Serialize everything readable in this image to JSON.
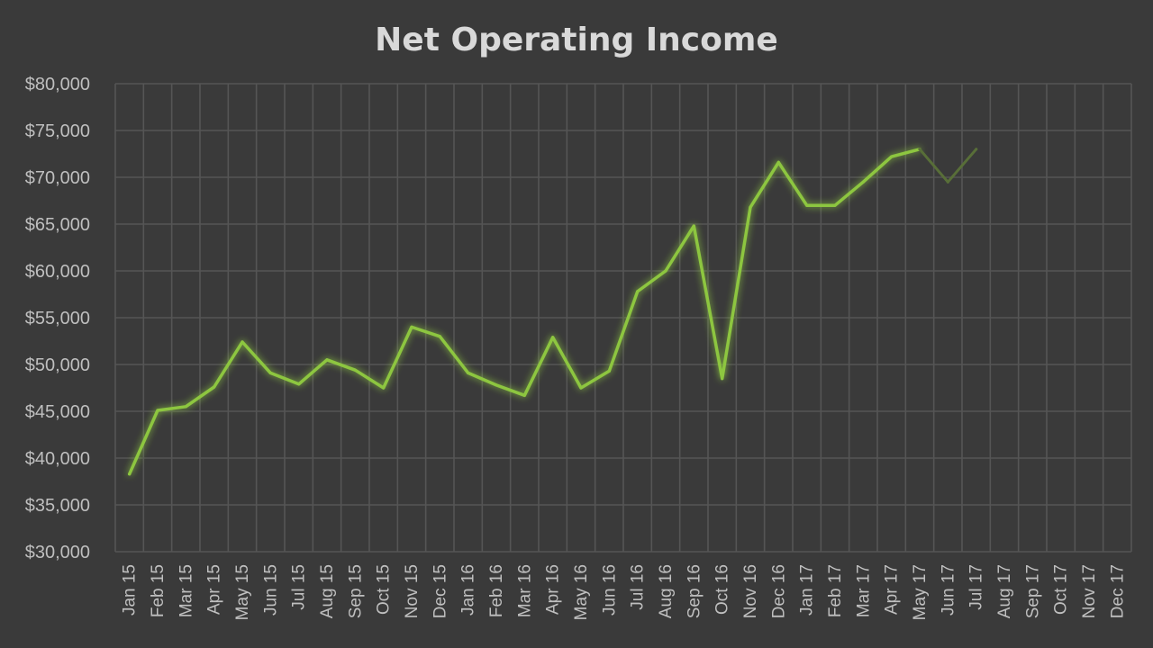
{
  "colors": {
    "background": "#3a3a3a",
    "grid": "#555555",
    "line": "#8dc63f",
    "line_faded": "#586e38",
    "text": "#bfbfbf",
    "title": "#d9d9d9"
  },
  "chart_data": {
    "type": "line",
    "title": "Net Operating Income",
    "xlabel": "",
    "ylabel": "",
    "ylim": [
      30000,
      80000
    ],
    "ytick_values": [
      30000,
      35000,
      40000,
      45000,
      50000,
      55000,
      60000,
      65000,
      70000,
      75000,
      80000
    ],
    "ytick_labels": [
      "$30,000",
      "$35,000",
      "$40,000",
      "$45,000",
      "$50,000",
      "$55,000",
      "$60,000",
      "$65,000",
      "$70,000",
      "$75,000",
      "$80,000"
    ],
    "grid": true,
    "legend": "none",
    "categories": [
      "Jan 15",
      "Feb 15",
      "Mar 15",
      "Apr 15",
      "May 15",
      "Jun 15",
      "Jul 15",
      "Aug 15",
      "Sep 15",
      "Oct 15",
      "Nov 15",
      "Dec 15",
      "Jan 16",
      "Feb 16",
      "Mar 16",
      "Apr 16",
      "May 16",
      "Jun 16",
      "Jul 16",
      "Aug 16",
      "Sep 16",
      "Oct 16",
      "Nov 16",
      "Dec 16",
      "Jan 17",
      "Feb 17",
      "Mar 17",
      "Apr 17",
      "May 17",
      "Jun 17",
      "Jul 17",
      "Aug 17",
      "Sep 17",
      "Oct 17",
      "Nov 17",
      "Dec 17"
    ],
    "series": [
      {
        "values": [
          38300,
          45100,
          45500,
          47600,
          52400,
          49100,
          47900,
          50500,
          49400,
          47500,
          54000,
          53000,
          49100,
          47800,
          46700,
          52900,
          47500,
          49300,
          57800,
          60000,
          64800,
          48500,
          66800,
          71600,
          67000,
          67000,
          69500,
          72200,
          73000,
          69500,
          73000,
          null,
          null,
          null,
          null,
          null
        ],
        "faded_from_index": 28
      }
    ]
  }
}
